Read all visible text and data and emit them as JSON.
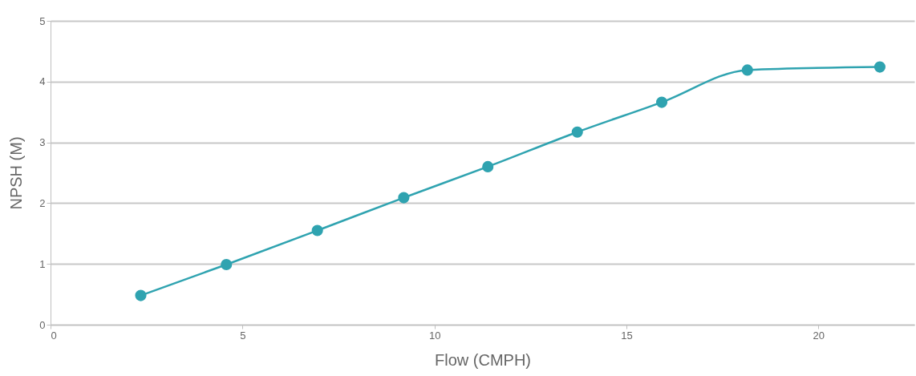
{
  "chart_data": {
    "type": "line",
    "xlabel": "Flow (CMPH)",
    "ylabel": "NPSH (M)",
    "x": [
      2.35,
      4.58,
      6.95,
      9.2,
      11.39,
      13.72,
      15.92,
      18.15,
      21.6
    ],
    "series": [
      {
        "color": "#2fa3b0",
        "values": [
          0.48,
          0.99,
          1.55,
          2.09,
          2.6,
          3.17,
          3.66,
          4.19,
          4.24
        ]
      }
    ],
    "xlim": [
      0,
      22.5
    ],
    "xticks": [
      0,
      5,
      10,
      15,
      20
    ],
    "ylim": [
      0,
      5
    ],
    "yticks": [
      0,
      1,
      2,
      3,
      4,
      5
    ],
    "grid": "y",
    "marker": "circle",
    "line_style": "solid"
  }
}
